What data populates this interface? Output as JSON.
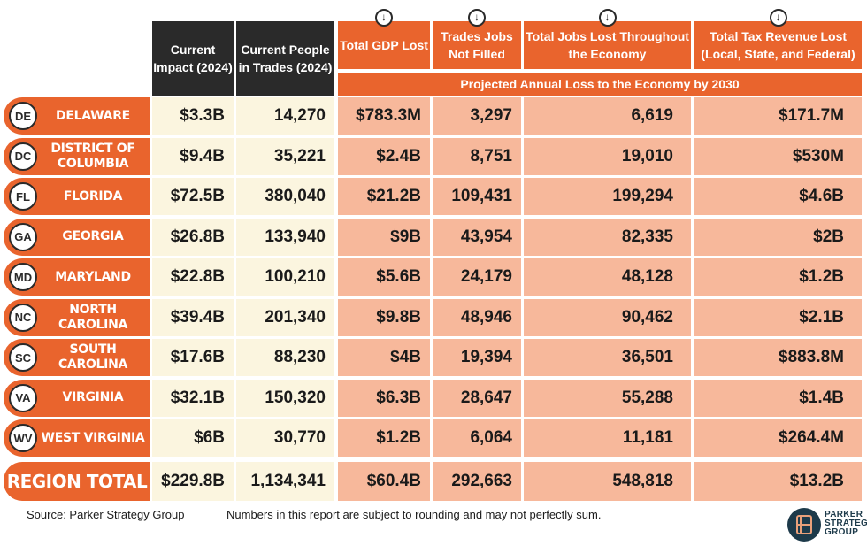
{
  "chart_data": {
    "type": "table",
    "headers": {
      "current_impact": "Current Impact (2024)",
      "current_people": "Current People in Trades (2024)",
      "gdp_lost": "Total GDP Lost",
      "trades_jobs": "Trades Jobs Not Filled",
      "total_jobs_lost": "Total Jobs Lost Throughout the Economy",
      "tax_revenue_lost": "Total Tax Revenue Lost (Local, State, and Federal)",
      "projection_label": "Projected Annual Loss to the Economy by 2030",
      "arrow_glyph": "↓"
    },
    "rows": [
      {
        "abbr": "DE",
        "state": "DELAWARE",
        "impact": "$3.3B",
        "people": "14,270",
        "gdp": "$783.3M",
        "trades": "3,297",
        "jobs": "6,619",
        "tax": "$171.7M"
      },
      {
        "abbr": "DC",
        "state": "DISTRICT OF COLUMBIA",
        "impact": "$9.4B",
        "people": "35,221",
        "gdp": "$2.4B",
        "trades": "8,751",
        "jobs": "19,010",
        "tax": "$530M"
      },
      {
        "abbr": "FL",
        "state": "FLORIDA",
        "impact": "$72.5B",
        "people": "380,040",
        "gdp": "$21.2B",
        "trades": "109,431",
        "jobs": "199,294",
        "tax": "$4.6B"
      },
      {
        "abbr": "GA",
        "state": "GEORGIA",
        "impact": "$26.8B",
        "people": "133,940",
        "gdp": "$9B",
        "trades": "43,954",
        "jobs": "82,335",
        "tax": "$2B"
      },
      {
        "abbr": "MD",
        "state": "MARYLAND",
        "impact": "$22.8B",
        "people": "100,210",
        "gdp": "$5.6B",
        "trades": "24,179",
        "jobs": "48,128",
        "tax": "$1.2B"
      },
      {
        "abbr": "NC",
        "state": "NORTH CAROLINA",
        "impact": "$39.4B",
        "people": "201,340",
        "gdp": "$9.8B",
        "trades": "48,946",
        "jobs": "90,462",
        "tax": "$2.1B"
      },
      {
        "abbr": "SC",
        "state": "SOUTH CAROLINA",
        "impact": "$17.6B",
        "people": "88,230",
        "gdp": "$4B",
        "trades": "19,394",
        "jobs": "36,501",
        "tax": "$883.8M"
      },
      {
        "abbr": "VA",
        "state": "VIRGINIA",
        "impact": "$32.1B",
        "people": "150,320",
        "gdp": "$6.3B",
        "trades": "28,647",
        "jobs": "55,288",
        "tax": "$1.4B"
      },
      {
        "abbr": "WV",
        "state": "WEST VIRGINIA",
        "impact": "$6B",
        "people": "30,770",
        "gdp": "$1.2B",
        "trades": "6,064",
        "jobs": "11,181",
        "tax": "$264.4M"
      }
    ],
    "total": {
      "label": "REGION TOTAL",
      "impact": "$229.8B",
      "people": "1,134,341",
      "gdp": "$60.4B",
      "trades": "292,663",
      "jobs": "548,818",
      "tax": "$13.2B"
    }
  },
  "footer": {
    "source": "Source: Parker Strategy Group",
    "note": "Numbers in this report are subject to rounding and may not perfectly sum."
  },
  "logo": {
    "line1": "PARKER",
    "line2": "STRATEGY",
    "line3": "GROUP"
  },
  "colors": {
    "orange": "#e9642d",
    "dark": "#2a2a2a",
    "cream": "#fbf5df",
    "peach": "#f7b89b"
  }
}
